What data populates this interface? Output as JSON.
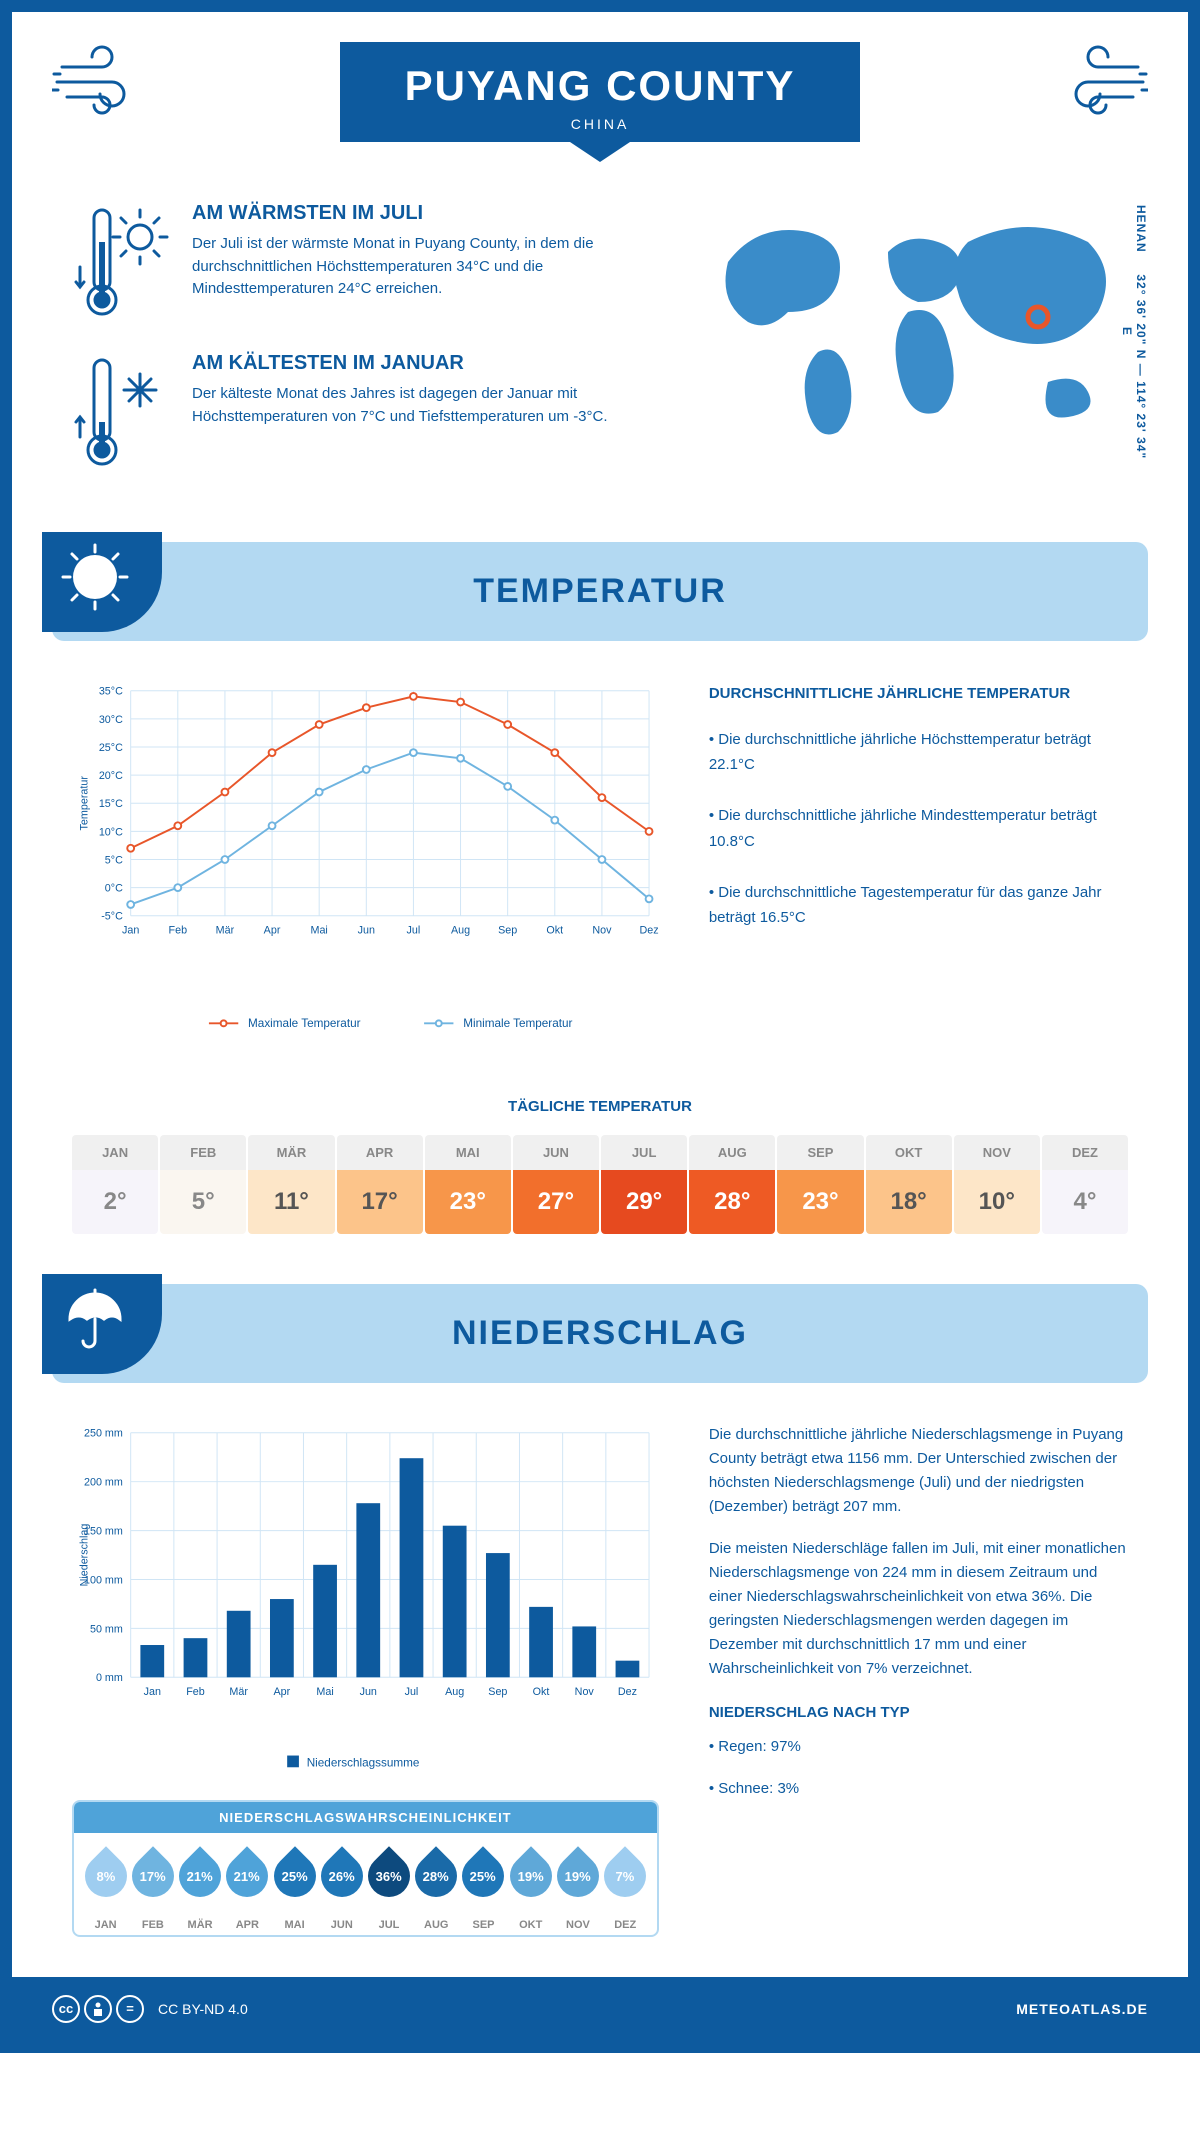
{
  "header": {
    "title": "PUYANG COUNTY",
    "subtitle": "CHINA",
    "coords": "32° 36' 20\" N — 114° 23' 34\" E",
    "region": "HENAN"
  },
  "warmest": {
    "title": "AM WÄRMSTEN IM JULI",
    "body": "Der Juli ist der wärmste Monat in Puyang County, in dem die durchschnittlichen Höchsttemperaturen 34°C und die Mindesttemperaturen 24°C erreichen."
  },
  "coldest": {
    "title": "AM KÄLTESTEN IM JANUAR",
    "body": "Der kälteste Monat des Jahres ist dagegen der Januar mit Höchsttemperaturen von 7°C und Tiefsttemperaturen um -3°C."
  },
  "colors": {
    "primary": "#0d5a9e",
    "light_blue": "#b3d9f2",
    "mid_blue": "#4fa3d9",
    "max_line": "#e8562a",
    "min_line": "#6fb4e0",
    "grid": "#d0e5f5",
    "bg": "#ffffff"
  },
  "temperature_section": {
    "title": "TEMPERATUR"
  },
  "temp_chart": {
    "type": "line",
    "months": [
      "Jan",
      "Feb",
      "Mär",
      "Apr",
      "Mai",
      "Jun",
      "Jul",
      "Aug",
      "Sep",
      "Okt",
      "Nov",
      "Dez"
    ],
    "y_label": "Temperatur",
    "ylim": [
      -5,
      35
    ],
    "ytick_step": 5,
    "ytick_suffix": "°C",
    "series": [
      {
        "name": "Maximale Temperatur",
        "color": "#e8562a",
        "values": [
          7,
          11,
          17,
          24,
          29,
          32,
          34,
          33,
          29,
          24,
          16,
          10
        ]
      },
      {
        "name": "Minimale Temperatur",
        "color": "#6fb4e0",
        "values": [
          -3,
          0,
          5,
          11,
          17,
          21,
          24,
          23,
          18,
          12,
          5,
          -2
        ]
      }
    ],
    "marker_radius": 3.5,
    "line_width": 2
  },
  "temp_desc": {
    "title": "DURCHSCHNITTLICHE JÄHRLICHE TEMPERATUR",
    "bullet1": "• Die durchschnittliche jährliche Höchsttemperatur beträgt 22.1°C",
    "bullet2": "• Die durchschnittliche jährliche Mindesttemperatur beträgt 10.8°C",
    "bullet3": "• Die durchschnittliche Tagestemperatur für das ganze Jahr beträgt 16.5°C"
  },
  "daily": {
    "title": "TÄGLICHE TEMPERATUR",
    "months": [
      "JAN",
      "FEB",
      "MÄR",
      "APR",
      "MAI",
      "JUN",
      "JUL",
      "AUG",
      "SEP",
      "OKT",
      "NOV",
      "DEZ"
    ],
    "values": [
      "2°",
      "5°",
      "11°",
      "17°",
      "23°",
      "27°",
      "29°",
      "28°",
      "23°",
      "18°",
      "10°",
      "4°"
    ],
    "bg_colors": [
      "#f6f4fa",
      "#faf6f0",
      "#fde6c8",
      "#fcc48a",
      "#f7964a",
      "#f26f2c",
      "#e64a1f",
      "#ee5a24",
      "#f7964a",
      "#fcc48a",
      "#fde6c8",
      "#f6f4fa"
    ],
    "text_colors": [
      "#888",
      "#888",
      "#555",
      "#555",
      "#fff",
      "#fff",
      "#fff",
      "#fff",
      "#fff",
      "#555",
      "#555",
      "#888"
    ],
    "header_bg": "#f0f0f0",
    "header_color": "#888"
  },
  "precip_section": {
    "title": "NIEDERSCHLAG"
  },
  "precip_chart": {
    "type": "bar",
    "months": [
      "Jan",
      "Feb",
      "Mär",
      "Apr",
      "Mai",
      "Jun",
      "Jul",
      "Aug",
      "Sep",
      "Okt",
      "Nov",
      "Dez"
    ],
    "y_label": "Niederschlag",
    "ylim": [
      0,
      250
    ],
    "ytick_step": 50,
    "ytick_suffix": " mm",
    "values": [
      33,
      40,
      68,
      80,
      115,
      178,
      224,
      155,
      127,
      72,
      52,
      17
    ],
    "bar_color": "#0d5a9e",
    "bar_width": 0.55,
    "legend": "Niederschlagssumme"
  },
  "precip_desc": {
    "p1": "Die durchschnittliche jährliche Niederschlagsmenge in Puyang County beträgt etwa 1156 mm. Der Unterschied zwischen der höchsten Niederschlagsmenge (Juli) und der niedrigsten (Dezember) beträgt 207 mm.",
    "p2": "Die meisten Niederschläge fallen im Juli, mit einer monatlichen Niederschlagsmenge von 224 mm in diesem Zeitraum und einer Niederschlagswahrscheinlichkeit von etwa 36%. Die geringsten Niederschlagsmengen werden dagegen im Dezember mit durchschnittlich 17 mm und einer Wahrscheinlichkeit von 7% verzeichnet.",
    "type_title": "NIEDERSCHLAG NACH TYP",
    "rain": "• Regen: 97%",
    "snow": "• Schnee: 3%"
  },
  "probability": {
    "title": "NIEDERSCHLAGSWAHRSCHEINLICHKEIT",
    "months": [
      "JAN",
      "FEB",
      "MÄR",
      "APR",
      "MAI",
      "JUN",
      "JUL",
      "AUG",
      "SEP",
      "OKT",
      "NOV",
      "DEZ"
    ],
    "values": [
      "8%",
      "17%",
      "21%",
      "21%",
      "25%",
      "26%",
      "36%",
      "28%",
      "25%",
      "19%",
      "19%",
      "7%"
    ],
    "colors": [
      "#9ecdf0",
      "#6fb4e0",
      "#4fa3d9",
      "#4fa3d9",
      "#1f77b8",
      "#1f77b8",
      "#0d4a7e",
      "#1a6aa8",
      "#1f77b8",
      "#5fa8d8",
      "#5fa8d8",
      "#9ecdf0"
    ]
  },
  "footer": {
    "license": "CC BY-ND 4.0",
    "site": "METEOATLAS.DE"
  }
}
